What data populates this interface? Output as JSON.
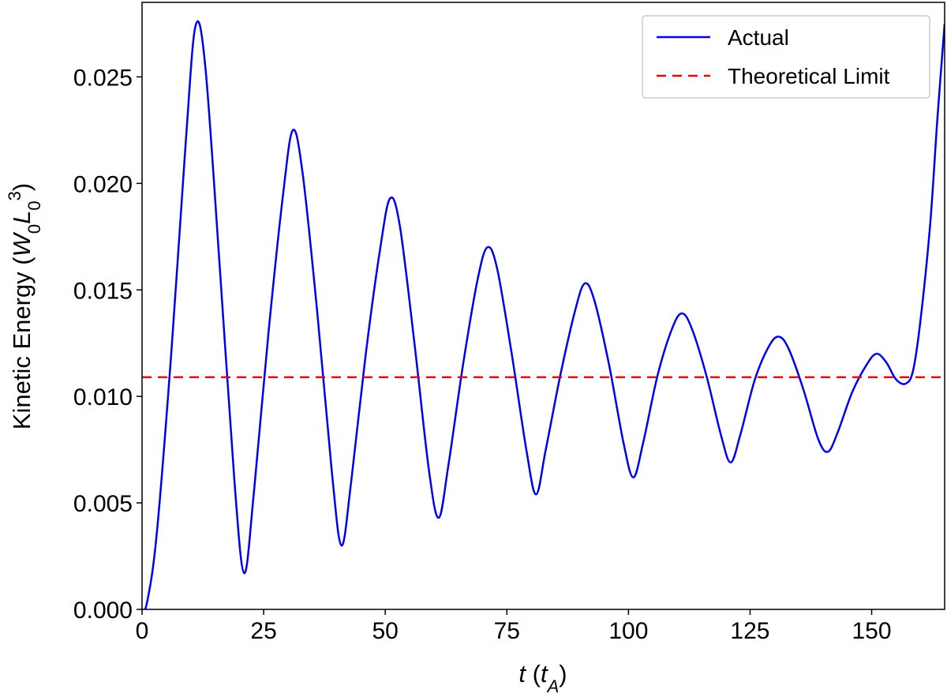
{
  "chart_data": {
    "type": "line",
    "title": "",
    "xlabel": "t (tA)",
    "ylabel": "Kinetic Energy (W0L0^3)",
    "xlim": [
      0,
      165
    ],
    "ylim": [
      0,
      0.0285
    ],
    "x_ticks": [
      0,
      25,
      50,
      75,
      100,
      125,
      150
    ],
    "x_tick_labels": [
      "0",
      "25",
      "50",
      "75",
      "100",
      "125",
      "150"
    ],
    "y_ticks": [
      0,
      0.005,
      0.01,
      0.015,
      0.02,
      0.025
    ],
    "y_tick_labels": [
      "0.000",
      "0.005",
      "0.010",
      "0.015",
      "0.020",
      "0.025"
    ],
    "grid": false,
    "legend": {
      "position": "top-right",
      "entries": [
        "Actual",
        "Theoretical Limit"
      ]
    },
    "series": [
      {
        "name": "Actual",
        "color": "#0000ee",
        "style": "solid",
        "points": [
          [
            0,
            0.0
          ],
          [
            1,
            0.0003
          ],
          [
            3,
            0.0035
          ],
          [
            6,
            0.012
          ],
          [
            9,
            0.022
          ],
          [
            11,
            0.0274
          ],
          [
            13,
            0.0255
          ],
          [
            16,
            0.016
          ],
          [
            19,
            0.006
          ],
          [
            21,
            0.0017
          ],
          [
            23,
            0.0055
          ],
          [
            26,
            0.013
          ],
          [
            29,
            0.0195
          ],
          [
            31,
            0.0225
          ],
          [
            33,
            0.0205
          ],
          [
            36,
            0.014
          ],
          [
            39,
            0.0065
          ],
          [
            41,
            0.003
          ],
          [
            43,
            0.006
          ],
          [
            46,
            0.012
          ],
          [
            49,
            0.017
          ],
          [
            51,
            0.0193
          ],
          [
            53,
            0.018
          ],
          [
            56,
            0.0125
          ],
          [
            59,
            0.0065
          ],
          [
            61,
            0.0043
          ],
          [
            63,
            0.0068
          ],
          [
            66,
            0.0115
          ],
          [
            69,
            0.0155
          ],
          [
            71,
            0.017
          ],
          [
            73,
            0.016
          ],
          [
            76,
            0.012
          ],
          [
            79,
            0.0075
          ],
          [
            81,
            0.0054
          ],
          [
            83,
            0.0075
          ],
          [
            86,
            0.011
          ],
          [
            89,
            0.014
          ],
          [
            91,
            0.0153
          ],
          [
            93,
            0.0145
          ],
          [
            96,
            0.0115
          ],
          [
            99,
            0.0078
          ],
          [
            101,
            0.0062
          ],
          [
            103,
            0.0078
          ],
          [
            106,
            0.011
          ],
          [
            109,
            0.0132
          ],
          [
            111,
            0.0139
          ],
          [
            113,
            0.0132
          ],
          [
            116,
            0.011
          ],
          [
            119,
            0.0082
          ],
          [
            121,
            0.0069
          ],
          [
            123,
            0.0082
          ],
          [
            126,
            0.0108
          ],
          [
            129,
            0.0124
          ],
          [
            131,
            0.0128
          ],
          [
            133,
            0.0122
          ],
          [
            136,
            0.0103
          ],
          [
            139,
            0.008
          ],
          [
            141,
            0.0074
          ],
          [
            143,
            0.0083
          ],
          [
            146,
            0.0102
          ],
          [
            149,
            0.0115
          ],
          [
            151,
            0.012
          ],
          [
            153,
            0.0116
          ],
          [
            155,
            0.0108
          ],
          [
            157,
            0.0106
          ],
          [
            158.5,
            0.0112
          ],
          [
            160,
            0.0135
          ],
          [
            162,
            0.018
          ],
          [
            163.5,
            0.023
          ],
          [
            165,
            0.0275
          ]
        ]
      },
      {
        "name": "Theoretical Limit",
        "color": "#ee0000",
        "style": "dashed",
        "y": 0.0109
      }
    ]
  }
}
